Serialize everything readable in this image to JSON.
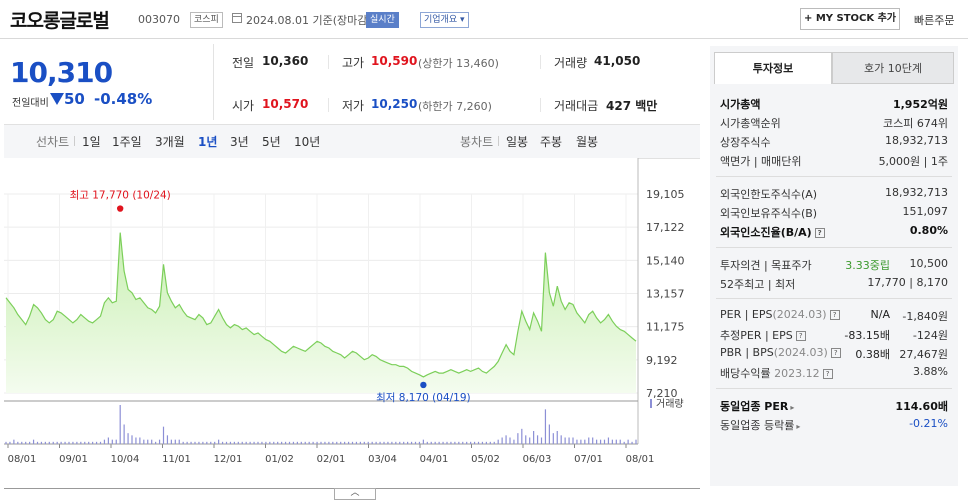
{
  "header": {
    "company_name": "코오롱글로벌",
    "code": "003070",
    "market_badge": "코스피",
    "date_text": "2024.08.01  기준(장마감)",
    "realtime_badge": "실시간",
    "company_info_label": "기업개요",
    "mystock_label": "+ MY STOCK 추가",
    "quick_order_label": "빠른주문"
  },
  "price": {
    "current": "10,310",
    "prev_compare_label": "전일대비",
    "change": "50",
    "change_pct": "-0.48%"
  },
  "quote": {
    "prev_label": "전일",
    "prev_value": "10,360",
    "high_label": "고가",
    "high_value": "10,590",
    "upper_limit": "(상한가 13,460)",
    "volume_label": "거래량",
    "volume_value": "41,050",
    "open_label": "시가",
    "open_value": "10,570",
    "low_label": "저가",
    "low_value": "10,250",
    "lower_limit": "(하한가 7,260)",
    "amount_label": "거래대금",
    "amount_value": "427 백만"
  },
  "range_bar": {
    "line_label": "선차트",
    "ranges": [
      "1일",
      "1주일",
      "3개월",
      "1년",
      "3년",
      "5년",
      "10년"
    ],
    "active_range": "1년",
    "candle_label": "봉차트",
    "candles": [
      "일봉",
      "주봉",
      "월봉"
    ]
  },
  "chart_data": {
    "type": "area",
    "y_ticks": [
      "19,105",
      "17,122",
      "15,140",
      "13,157",
      "11,175",
      "9,192",
      "7,210"
    ],
    "ylim": [
      7210,
      19105
    ],
    "x_ticks": [
      "08/01",
      "09/01",
      "10/04",
      "11/01",
      "12/01",
      "01/02",
      "02/01",
      "03/04",
      "04/01",
      "05/02",
      "06/03",
      "07/01",
      "08/01"
    ],
    "high_annotation": "최고 17,770 (10/24)",
    "low_annotation": "최저 8,170 (04/19)",
    "volume_label": "거래량",
    "series_color": "#7ccf5a",
    "values": [
      12900,
      12600,
      12300,
      11900,
      11600,
      11300,
      11800,
      12500,
      12300,
      12000,
      11600,
      11400,
      11600,
      12100,
      12000,
      11800,
      11600,
      11400,
      11600,
      11900,
      11700,
      11500,
      11400,
      11600,
      11800,
      12600,
      12900,
      12600,
      12700,
      16800,
      14500,
      13400,
      13200,
      12800,
      12900,
      12600,
      12300,
      12200,
      12000,
      12400,
      14900,
      13200,
      12700,
      12300,
      12500,
      12100,
      11800,
      11700,
      11600,
      11900,
      11700,
      11300,
      11400,
      11800,
      12200,
      11700,
      11300,
      11100,
      11300,
      11200,
      11000,
      11100,
      10900,
      10700,
      10800,
      10600,
      10400,
      10300,
      10100,
      9900,
      9700,
      9600,
      9800,
      10000,
      9900,
      9800,
      9700,
      9900,
      10100,
      10300,
      10200,
      10000,
      9900,
      9700,
      9600,
      9500,
      9300,
      9500,
      9700,
      9600,
      9400,
      9200,
      9300,
      9500,
      9400,
      9200,
      9100,
      9000,
      8900,
      8900,
      8800,
      8800,
      8700,
      8500,
      8400,
      8300,
      8170,
      8300,
      8400,
      8500,
      8400,
      8400,
      8500,
      8600,
      8500,
      8400,
      8500,
      8600,
      8500,
      8600,
      8700,
      8500,
      8400,
      8600,
      8800,
      9100,
      9600,
      10100,
      9700,
      9500,
      10900,
      12100,
      11500,
      11000,
      12000,
      11500,
      10900,
      15600,
      13200,
      12400,
      13600,
      12700,
      12200,
      12600,
      12500,
      12000,
      11700,
      11400,
      11900,
      12100,
      11700,
      11400,
      11600,
      11900,
      11500,
      11200,
      11000,
      10900,
      10700,
      10500,
      10310
    ],
    "volumes": [
      1,
      1,
      2,
      1,
      1,
      1,
      1,
      2,
      1,
      1,
      1,
      1,
      1,
      1,
      1,
      1,
      1,
      1,
      1,
      1,
      1,
      1,
      1,
      1,
      1,
      2,
      3,
      2,
      2,
      18,
      9,
      5,
      4,
      3,
      3,
      2,
      2,
      2,
      1,
      2,
      8,
      4,
      2,
      2,
      2,
      1,
      1,
      1,
      1,
      1,
      1,
      1,
      1,
      1,
      2,
      1,
      1,
      1,
      1,
      1,
      1,
      1,
      1,
      1,
      1,
      1,
      1,
      1,
      1,
      1,
      1,
      1,
      1,
      1,
      1,
      1,
      1,
      1,
      1,
      1,
      1,
      1,
      1,
      1,
      1,
      1,
      1,
      1,
      1,
      1,
      1,
      1,
      1,
      1,
      1,
      1,
      1,
      1,
      1,
      1,
      1,
      1,
      1,
      1,
      1,
      1,
      2,
      1,
      1,
      1,
      1,
      1,
      1,
      1,
      1,
      1,
      1,
      1,
      1,
      1,
      1,
      1,
      1,
      1,
      1,
      2,
      3,
      4,
      3,
      2,
      5,
      7,
      4,
      3,
      6,
      4,
      3,
      16,
      9,
      5,
      6,
      4,
      3,
      3,
      3,
      2,
      2,
      2,
      3,
      3,
      2,
      2,
      2,
      3,
      2,
      2,
      2,
      1,
      2,
      1,
      2
    ]
  },
  "right_panel": {
    "tab_invest": "투자정보",
    "tab_orderbook": "호가 10단계",
    "market_cap_label": "시가총액",
    "market_cap_value": "1,952억원",
    "market_cap_rank_label": "시가총액순위",
    "market_cap_rank_value": "코스피 674위",
    "shares_label": "상장주식수",
    "shares_value": "18,932,713",
    "par_label": "액면가 | 매매단위",
    "par_value": "5,000원 | 1주",
    "foreign_limit_label": "외국인한도주식수(A)",
    "foreign_limit_value": "18,932,713",
    "foreign_hold_label": "외국인보유주식수(B)",
    "foreign_hold_value": "151,097",
    "foreign_rate_label": "외국인소진율(B/A)",
    "foreign_rate_value": "0.80%",
    "opinion_label": "투자의견 | 목표주가",
    "opinion_value": "3.33중립",
    "target_value": "10,500",
    "week52_label": "52주최고 | 최저",
    "week52_value": "17,770 | 8,170",
    "per_label": "PER | EPS",
    "per_period": "(2024.03)",
    "per_value": "N/A",
    "eps_value": "-1,840원",
    "est_per_label": "추정PER | EPS",
    "est_per_value": "-83.15배",
    "est_eps_value": "-124원",
    "pbr_label": "PBR | BPS",
    "pbr_period": "(2024.03)",
    "pbr_value": "0.38배",
    "bps_value": "27,467원",
    "dividend_label": "배당수익률",
    "dividend_period": "2023.12",
    "dividend_value": "3.88%",
    "sector_per_label": "동일업종 PER",
    "sector_per_value": "114.60배",
    "sector_chg_label": "동일업종 등락률",
    "sector_chg_value": "-0.21%"
  }
}
